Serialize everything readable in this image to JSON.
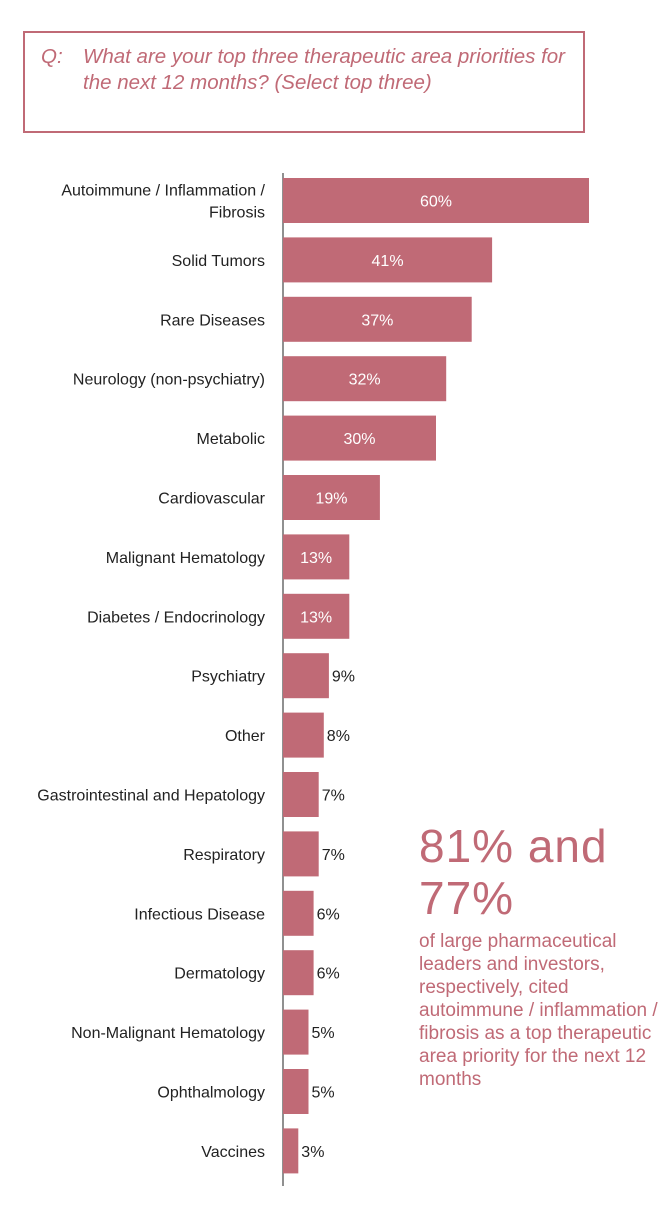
{
  "question": {
    "prefix": "Q:",
    "text": "What are your top three therapeutic area priorities for the next 12 months? (Select top three)"
  },
  "chart_data": {
    "type": "bar",
    "orientation": "horizontal",
    "categories": [
      "Autoimmune / Inflammation / Fibrosis",
      "Solid Tumors",
      "Rare Diseases",
      "Neurology (non-psychiatry)",
      "Metabolic",
      "Cardiovascular",
      "Malignant Hematology",
      "Diabetes / Endocrinology",
      "Psychiatry",
      "Other",
      "Gastrointestinal and Hepatology",
      "Respiratory",
      "Infectious Disease",
      "Dermatology",
      "Non-Malignant Hematology",
      "Ophthalmology",
      "Vaccines"
    ],
    "values": [
      60,
      41,
      37,
      32,
      30,
      19,
      13,
      13,
      9,
      8,
      7,
      7,
      6,
      6,
      5,
      5,
      3
    ],
    "value_labels": [
      "60%",
      "41%",
      "37%",
      "32%",
      "30%",
      "19%",
      "13%",
      "13%",
      "9%",
      "8%",
      "7%",
      "7%",
      "6%",
      "6%",
      "5%",
      "5%",
      "3%"
    ],
    "xlim": [
      0,
      60
    ],
    "grid": false,
    "legend": "none",
    "bar_color": "#c06a76"
  },
  "callout": {
    "headline": "81% and 77%",
    "text": "of large pharmaceutical leaders and investors, respectively, cited autoimmune / inflammation / fibrosis as a top therapeutic area priority for the next 12 months"
  },
  "colors": {
    "accent": "#c06a76",
    "text": "#222222",
    "bar_label_inside": "#ffffff"
  }
}
